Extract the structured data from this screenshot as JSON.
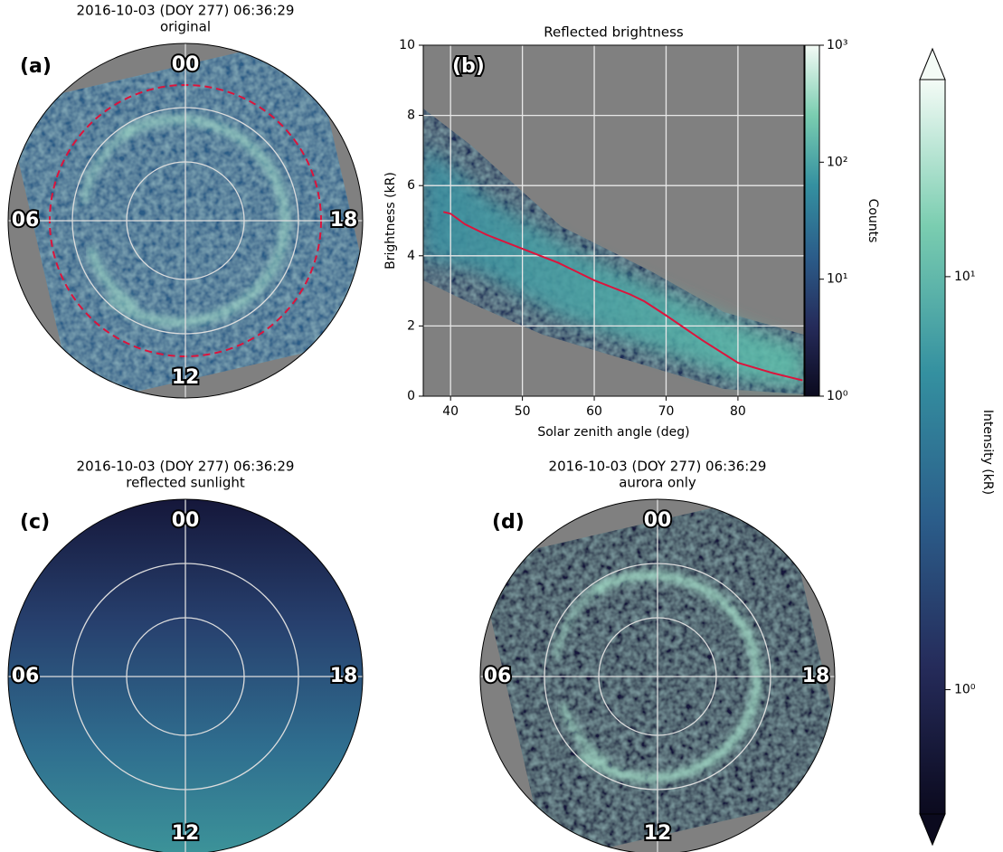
{
  "chart_data": [
    {
      "type": "polar-image",
      "title": "2016-10-03 (DOY 277) 06:36:29",
      "subtitle": "original",
      "label": "(a)",
      "hour_labels": [
        "00",
        "06",
        "12",
        "18"
      ]
    },
    {
      "type": "histogram2d",
      "title": "Reflected brightness",
      "label": "(b)",
      "xlabel": "Solar zenith angle (deg)",
      "ylabel": "Brightness (kR)",
      "xlim": [
        36.2,
        89.2
      ],
      "ylim": [
        0,
        10
      ],
      "xticks": [
        40,
        50,
        60,
        70,
        80
      ],
      "yticks": [
        0,
        2,
        4,
        6,
        8,
        10
      ],
      "grid": true,
      "series": [
        {
          "color": "#dc143c",
          "x": [
            39,
            40,
            42,
            45,
            50,
            55,
            60,
            65,
            67,
            70,
            75,
            80,
            85,
            89
          ],
          "values": [
            5.25,
            5.2,
            4.9,
            4.6,
            4.2,
            3.8,
            3.3,
            2.9,
            2.7,
            2.3,
            1.6,
            0.95,
            0.65,
            0.45
          ]
        }
      ],
      "colorbar": {
        "label": "Counts",
        "scale": "log",
        "lim": [
          1,
          1000
        ],
        "ticks": [
          {
            "value": 1,
            "label": "10⁰"
          },
          {
            "value": 10,
            "label": "10¹"
          },
          {
            "value": 100,
            "label": "10²"
          },
          {
            "value": 1000,
            "label": "10³"
          }
        ]
      }
    },
    {
      "type": "polar-image",
      "title": "2016-10-03 (DOY 277) 06:36:29",
      "subtitle": "reflected sunlight",
      "label": "(c)",
      "hour_labels": [
        "00",
        "06",
        "12",
        "18"
      ]
    },
    {
      "type": "polar-image",
      "title": "2016-10-03 (DOY 277) 06:36:29",
      "subtitle": "aurora only",
      "label": "(d)",
      "hour_labels": [
        "00",
        "06",
        "12",
        "18"
      ]
    },
    {
      "type": "colorbar",
      "label": "Intensity (kR)",
      "scale": "log",
      "ylim": [
        0.5,
        30
      ],
      "yticks": [
        {
          "value": 1,
          "label": "10⁰"
        },
        {
          "value": 10,
          "label": "10¹"
        }
      ]
    }
  ]
}
